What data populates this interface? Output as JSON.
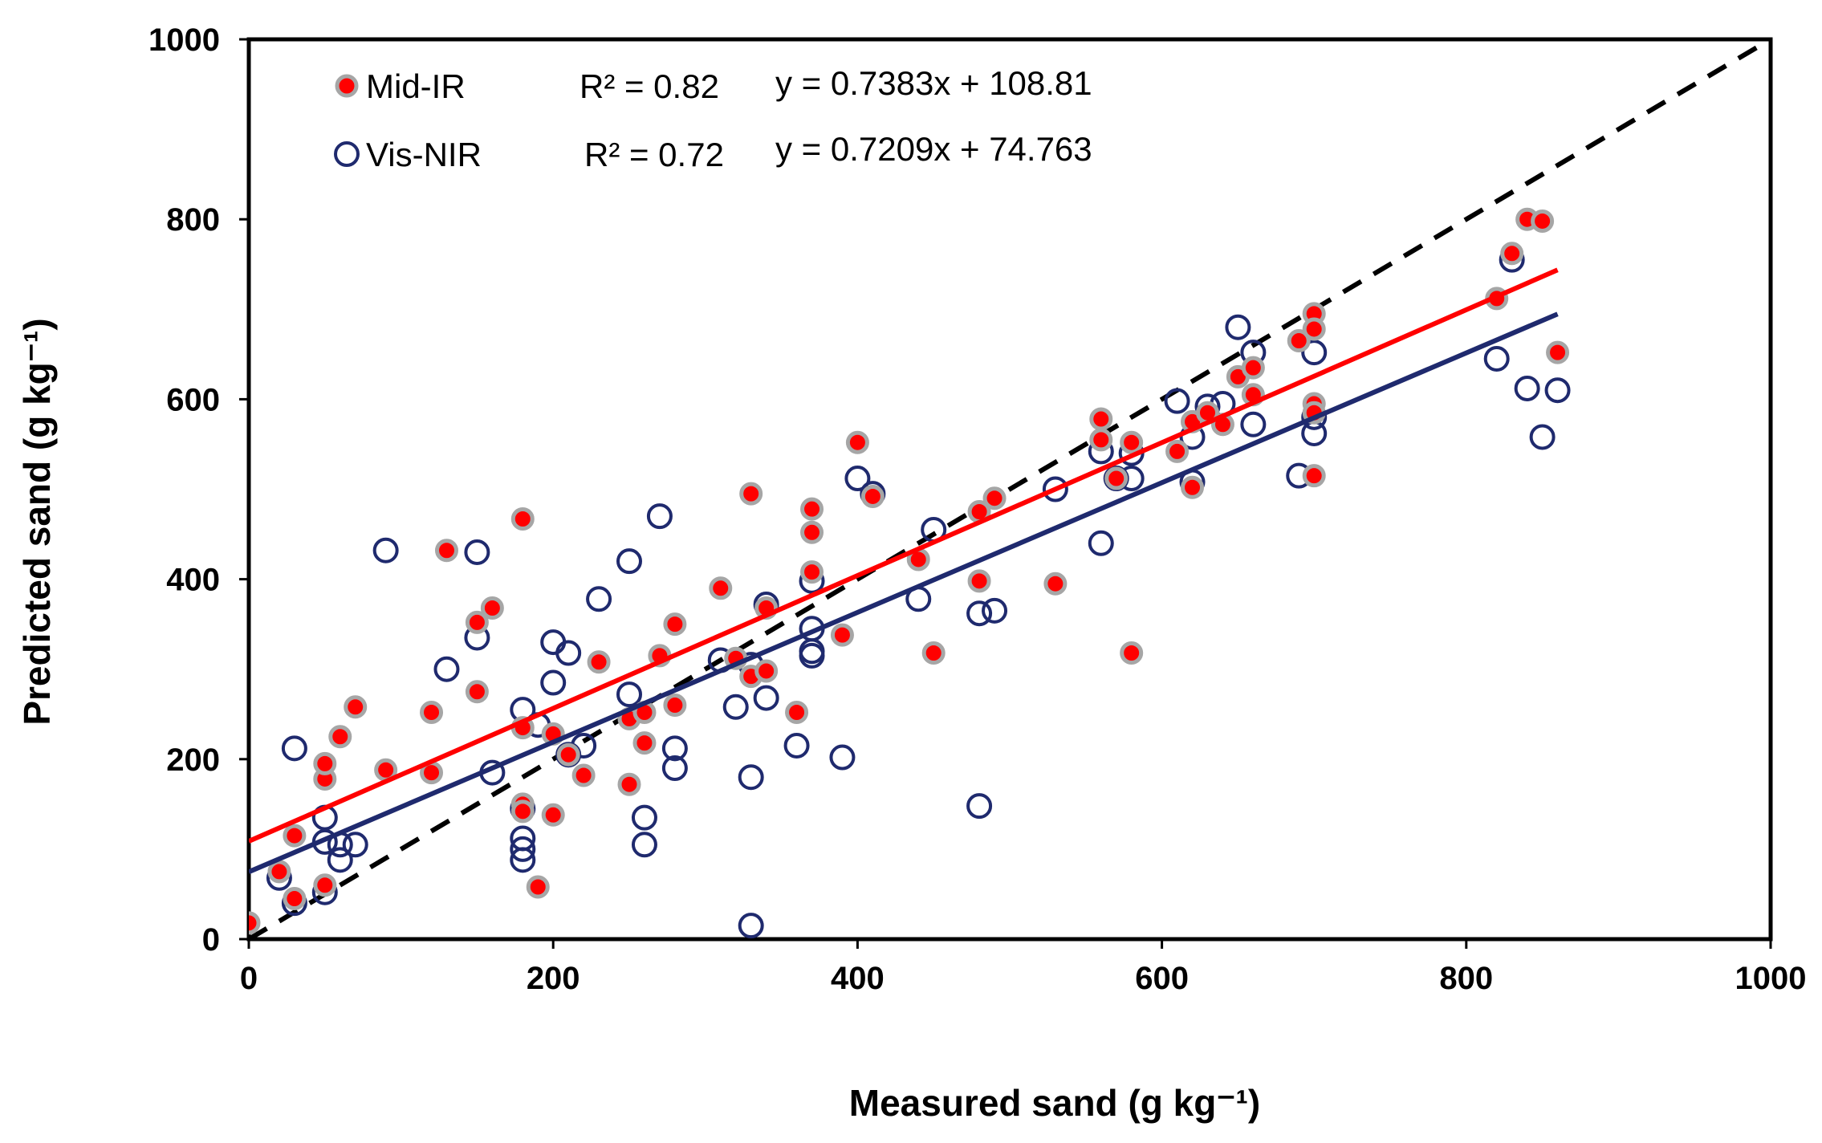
{
  "chart_data": {
    "type": "scatter",
    "xlabel": "Measured  sand  (g kg⁻¹)",
    "ylabel": "Predicted  sand  (g kg⁻¹)",
    "xlim": [
      0,
      1000
    ],
    "ylim": [
      0,
      1000
    ],
    "xticks": [
      "0",
      "200",
      "400",
      "600",
      "800",
      "1000"
    ],
    "yticks": [
      "0",
      "200",
      "400",
      "600",
      "800",
      "1000"
    ],
    "grid": false,
    "legend_position": "top-left",
    "reference_line": {
      "label": "1:1",
      "style": "dashed",
      "color": "#000000",
      "from": [
        0,
        0
      ],
      "to": [
        1000,
        1000
      ]
    },
    "series": [
      {
        "name": "Mid-IR",
        "r2_label": "R² = 0.82",
        "equation": "y = 0.7383x + 108.81",
        "slope": 0.7383,
        "intercept": 108.81,
        "fit_range": [
          0,
          860
        ],
        "color": "#ff0000",
        "outline": "#a6a6a6",
        "marker": "filled-circle",
        "line_color": "#ff0000",
        "points": [
          [
            0,
            18
          ],
          [
            20,
            75
          ],
          [
            30,
            45
          ],
          [
            30,
            115
          ],
          [
            50,
            178
          ],
          [
            50,
            195
          ],
          [
            50,
            60
          ],
          [
            60,
            225
          ],
          [
            70,
            258
          ],
          [
            90,
            188
          ],
          [
            120,
            252
          ],
          [
            120,
            185
          ],
          [
            130,
            432
          ],
          [
            150,
            275
          ],
          [
            150,
            352
          ],
          [
            160,
            368
          ],
          [
            180,
            467
          ],
          [
            180,
            235
          ],
          [
            180,
            150
          ],
          [
            180,
            142
          ],
          [
            190,
            58
          ],
          [
            200,
            138
          ],
          [
            200,
            228
          ],
          [
            210,
            205
          ],
          [
            220,
            182
          ],
          [
            230,
            308
          ],
          [
            250,
            172
          ],
          [
            250,
            245
          ],
          [
            260,
            218
          ],
          [
            260,
            252
          ],
          [
            270,
            315
          ],
          [
            280,
            350
          ],
          [
            280,
            260
          ],
          [
            310,
            390
          ],
          [
            320,
            312
          ],
          [
            330,
            495
          ],
          [
            330,
            292
          ],
          [
            340,
            298
          ],
          [
            340,
            368
          ],
          [
            360,
            252
          ],
          [
            370,
            478
          ],
          [
            370,
            452
          ],
          [
            370,
            408
          ],
          [
            390,
            338
          ],
          [
            400,
            552
          ],
          [
            410,
            492
          ],
          [
            440,
            422
          ],
          [
            450,
            318
          ],
          [
            480,
            475
          ],
          [
            480,
            398
          ],
          [
            490,
            490
          ],
          [
            530,
            395
          ],
          [
            560,
            578
          ],
          [
            560,
            555
          ],
          [
            570,
            512
          ],
          [
            580,
            552
          ],
          [
            580,
            318
          ],
          [
            610,
            542
          ],
          [
            620,
            575
          ],
          [
            620,
            502
          ],
          [
            630,
            585
          ],
          [
            640,
            572
          ],
          [
            650,
            625
          ],
          [
            660,
            635
          ],
          [
            660,
            605
          ],
          [
            690,
            665
          ],
          [
            700,
            695
          ],
          [
            700,
            678
          ],
          [
            700,
            595
          ],
          [
            700,
            585
          ],
          [
            700,
            515
          ],
          [
            820,
            712
          ],
          [
            830,
            762
          ],
          [
            840,
            800
          ],
          [
            850,
            798
          ],
          [
            860,
            652
          ]
        ]
      },
      {
        "name": "Vis-NIR",
        "r2_label": "R² = 0.72",
        "equation": "y = 0.7209x + 74.763",
        "slope": 0.7209,
        "intercept": 74.763,
        "fit_range": [
          0,
          860
        ],
        "color": "#1f2a6e",
        "marker": "open-circle",
        "line_color": "#1f2a6e",
        "points": [
          [
            20,
            68
          ],
          [
            30,
            212
          ],
          [
            30,
            40
          ],
          [
            50,
            135
          ],
          [
            50,
            108
          ],
          [
            50,
            52
          ],
          [
            60,
            105
          ],
          [
            60,
            88
          ],
          [
            70,
            105
          ],
          [
            90,
            432
          ],
          [
            130,
            300
          ],
          [
            150,
            335
          ],
          [
            150,
            430
          ],
          [
            160,
            185
          ],
          [
            180,
            255
          ],
          [
            180,
            145
          ],
          [
            180,
            112
          ],
          [
            180,
            100
          ],
          [
            180,
            88
          ],
          [
            190,
            238
          ],
          [
            200,
            330
          ],
          [
            200,
            285
          ],
          [
            210,
            318
          ],
          [
            210,
            205
          ],
          [
            220,
            215
          ],
          [
            230,
            378
          ],
          [
            250,
            420
          ],
          [
            250,
            272
          ],
          [
            260,
            135
          ],
          [
            260,
            105
          ],
          [
            270,
            470
          ],
          [
            280,
            212
          ],
          [
            280,
            190
          ],
          [
            310,
            310
          ],
          [
            320,
            258
          ],
          [
            330,
            305
          ],
          [
            330,
            180
          ],
          [
            330,
            15
          ],
          [
            340,
            372
          ],
          [
            340,
            268
          ],
          [
            360,
            215
          ],
          [
            370,
            345
          ],
          [
            370,
            398
          ],
          [
            370,
            320
          ],
          [
            370,
            315
          ],
          [
            390,
            202
          ],
          [
            400,
            512
          ],
          [
            410,
            495
          ],
          [
            440,
            378
          ],
          [
            450,
            455
          ],
          [
            480,
            362
          ],
          [
            480,
            148
          ],
          [
            490,
            365
          ],
          [
            530,
            500
          ],
          [
            560,
            440
          ],
          [
            560,
            542
          ],
          [
            570,
            512
          ],
          [
            580,
            540
          ],
          [
            580,
            512
          ],
          [
            610,
            598
          ],
          [
            620,
            508
          ],
          [
            620,
            558
          ],
          [
            630,
            592
          ],
          [
            640,
            595
          ],
          [
            650,
            680
          ],
          [
            660,
            652
          ],
          [
            660,
            572
          ],
          [
            690,
            515
          ],
          [
            700,
            652
          ],
          [
            700,
            580
          ],
          [
            700,
            562
          ],
          [
            820,
            645
          ],
          [
            830,
            755
          ],
          [
            840,
            612
          ],
          [
            850,
            558
          ],
          [
            860,
            610
          ]
        ]
      }
    ]
  }
}
